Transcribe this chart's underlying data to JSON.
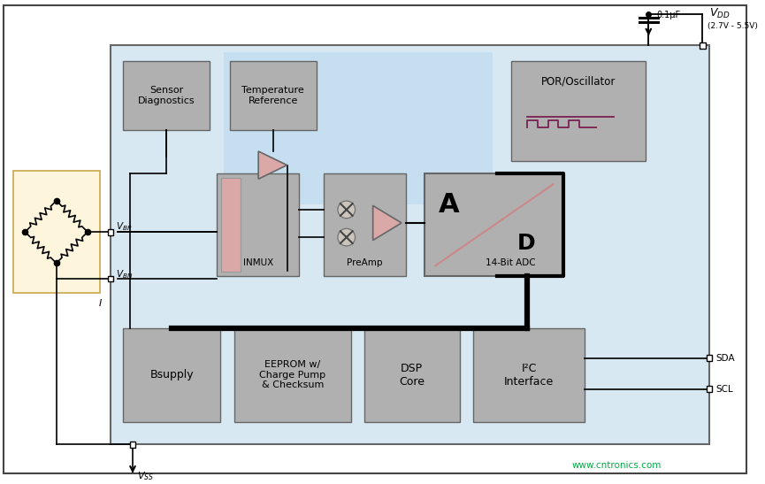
{
  "bg_color": "#ffffff",
  "outer_border_color": "#444444",
  "chip_bg_color": "#d8e8f2",
  "chip_border_color": "#666666",
  "block_bg_color": "#b0b0b0",
  "block_border_color": "#666666",
  "light_blue_bg": "#c5dff0",
  "sensor_bg": "#fdf5dc",
  "sensor_border": "#c8a84b",
  "pink_block": "#dba8a8",
  "wire_color": "#000000",
  "signal_color": "#7a2050",
  "watermark_color": "#00aa44",
  "watermark_text": "www.cntronics.com",
  "vdd_range": "(2.7V - 5.5V)",
  "cap_text": "0.1μF",
  "sensor_diag_text": "Sensor\nDiagnostics",
  "temp_ref_text": "Temperature\nReference",
  "por_osc_text": "POR/Oscillator",
  "inmux_text": "INMUX",
  "preamp_text": "PreAmp",
  "adc_text": "14-Bit ADC",
  "a_text": "A",
  "d_text": "D",
  "bsupply_text": "Bsupply",
  "eeprom_text": "EEPROM w/\nCharge Pump\n& Checksum",
  "dsp_text": "DSP\nCore",
  "i2c_text": "I²C\nInterface",
  "sda_text": "SDA",
  "scl_text": "SCL"
}
